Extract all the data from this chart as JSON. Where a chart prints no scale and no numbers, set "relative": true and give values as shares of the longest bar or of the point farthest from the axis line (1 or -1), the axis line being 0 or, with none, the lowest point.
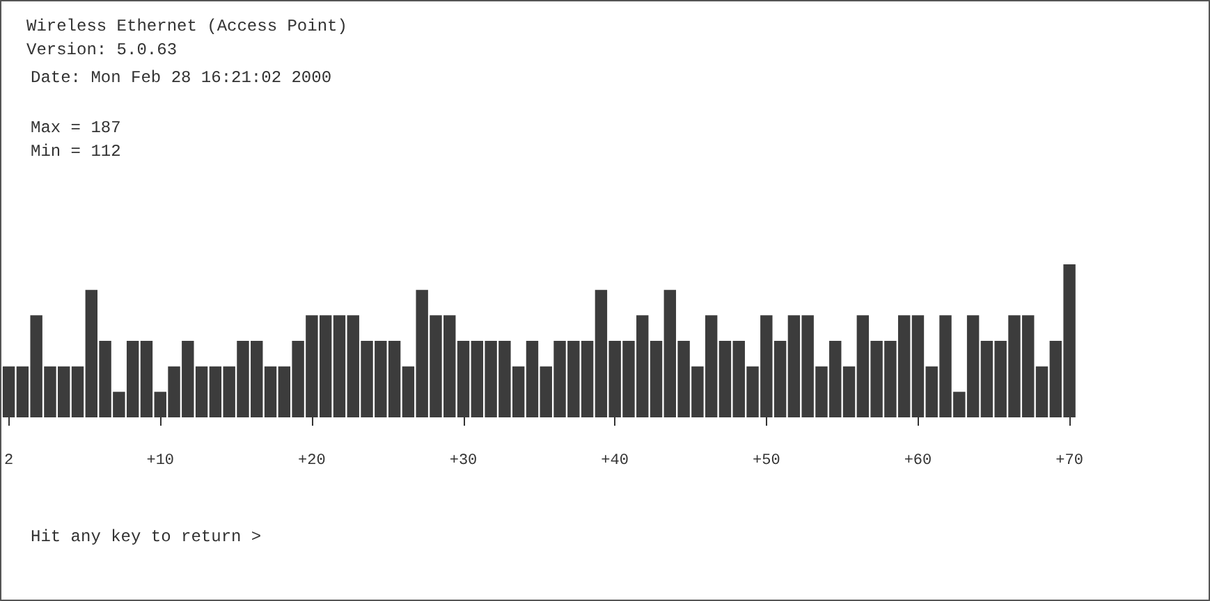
{
  "chart_data": {
    "type": "bar",
    "title": "Wireless Ethernet (Access Point)",
    "subtitle": "Version: 5.0.63",
    "annotations": [
      "Date: Mon Feb 28 16:21:02 2000",
      "Max = 187",
      "Min = 112",
      "Hit any key to return >"
    ],
    "relative": true,
    "color": "#3c3c3c",
    "categories": [
      "2",
      null,
      null,
      null,
      null,
      null,
      null,
      null,
      null,
      null,
      null,
      "+10",
      null,
      null,
      null,
      null,
      null,
      null,
      null,
      null,
      null,
      null,
      "+20",
      null,
      null,
      null,
      null,
      null,
      null,
      null,
      null,
      null,
      null,
      "+30",
      null,
      null,
      null,
      null,
      null,
      null,
      null,
      null,
      null,
      null,
      "+40",
      null,
      null,
      null,
      null,
      null,
      null,
      null,
      null,
      null,
      null,
      "+50",
      null,
      null,
      null,
      null,
      null,
      null,
      null,
      null,
      null,
      null,
      "+60",
      null,
      null,
      null,
      null,
      null,
      null,
      null,
      null,
      null,
      null,
      "+70"
    ],
    "values": [
      0.333,
      0.333,
      0.667,
      0.333,
      0.333,
      0.333,
      0.833,
      0.5,
      0.167,
      0.5,
      0.5,
      0.167,
      0.333,
      0.5,
      0.333,
      0.333,
      0.333,
      0.5,
      0.5,
      0.333,
      0.333,
      0.5,
      0.667,
      0.667,
      0.667,
      0.667,
      0.5,
      0.5,
      0.5,
      0.333,
      0.833,
      0.667,
      0.667,
      0.5,
      0.5,
      0.5,
      0.5,
      0.333,
      0.5,
      0.333,
      0.5,
      0.5,
      0.5,
      0.833,
      0.5,
      0.5,
      0.667,
      0.5,
      0.833,
      0.5,
      0.333,
      0.667,
      0.5,
      0.5,
      0.333,
      0.667,
      0.5,
      0.667,
      0.667,
      0.333,
      0.5,
      0.333,
      0.667,
      0.5,
      0.5,
      0.667,
      0.667,
      0.333,
      0.667,
      0.167,
      0.667,
      0.5,
      0.5,
      0.667,
      0.667,
      0.333,
      0.5,
      1
    ]
  }
}
